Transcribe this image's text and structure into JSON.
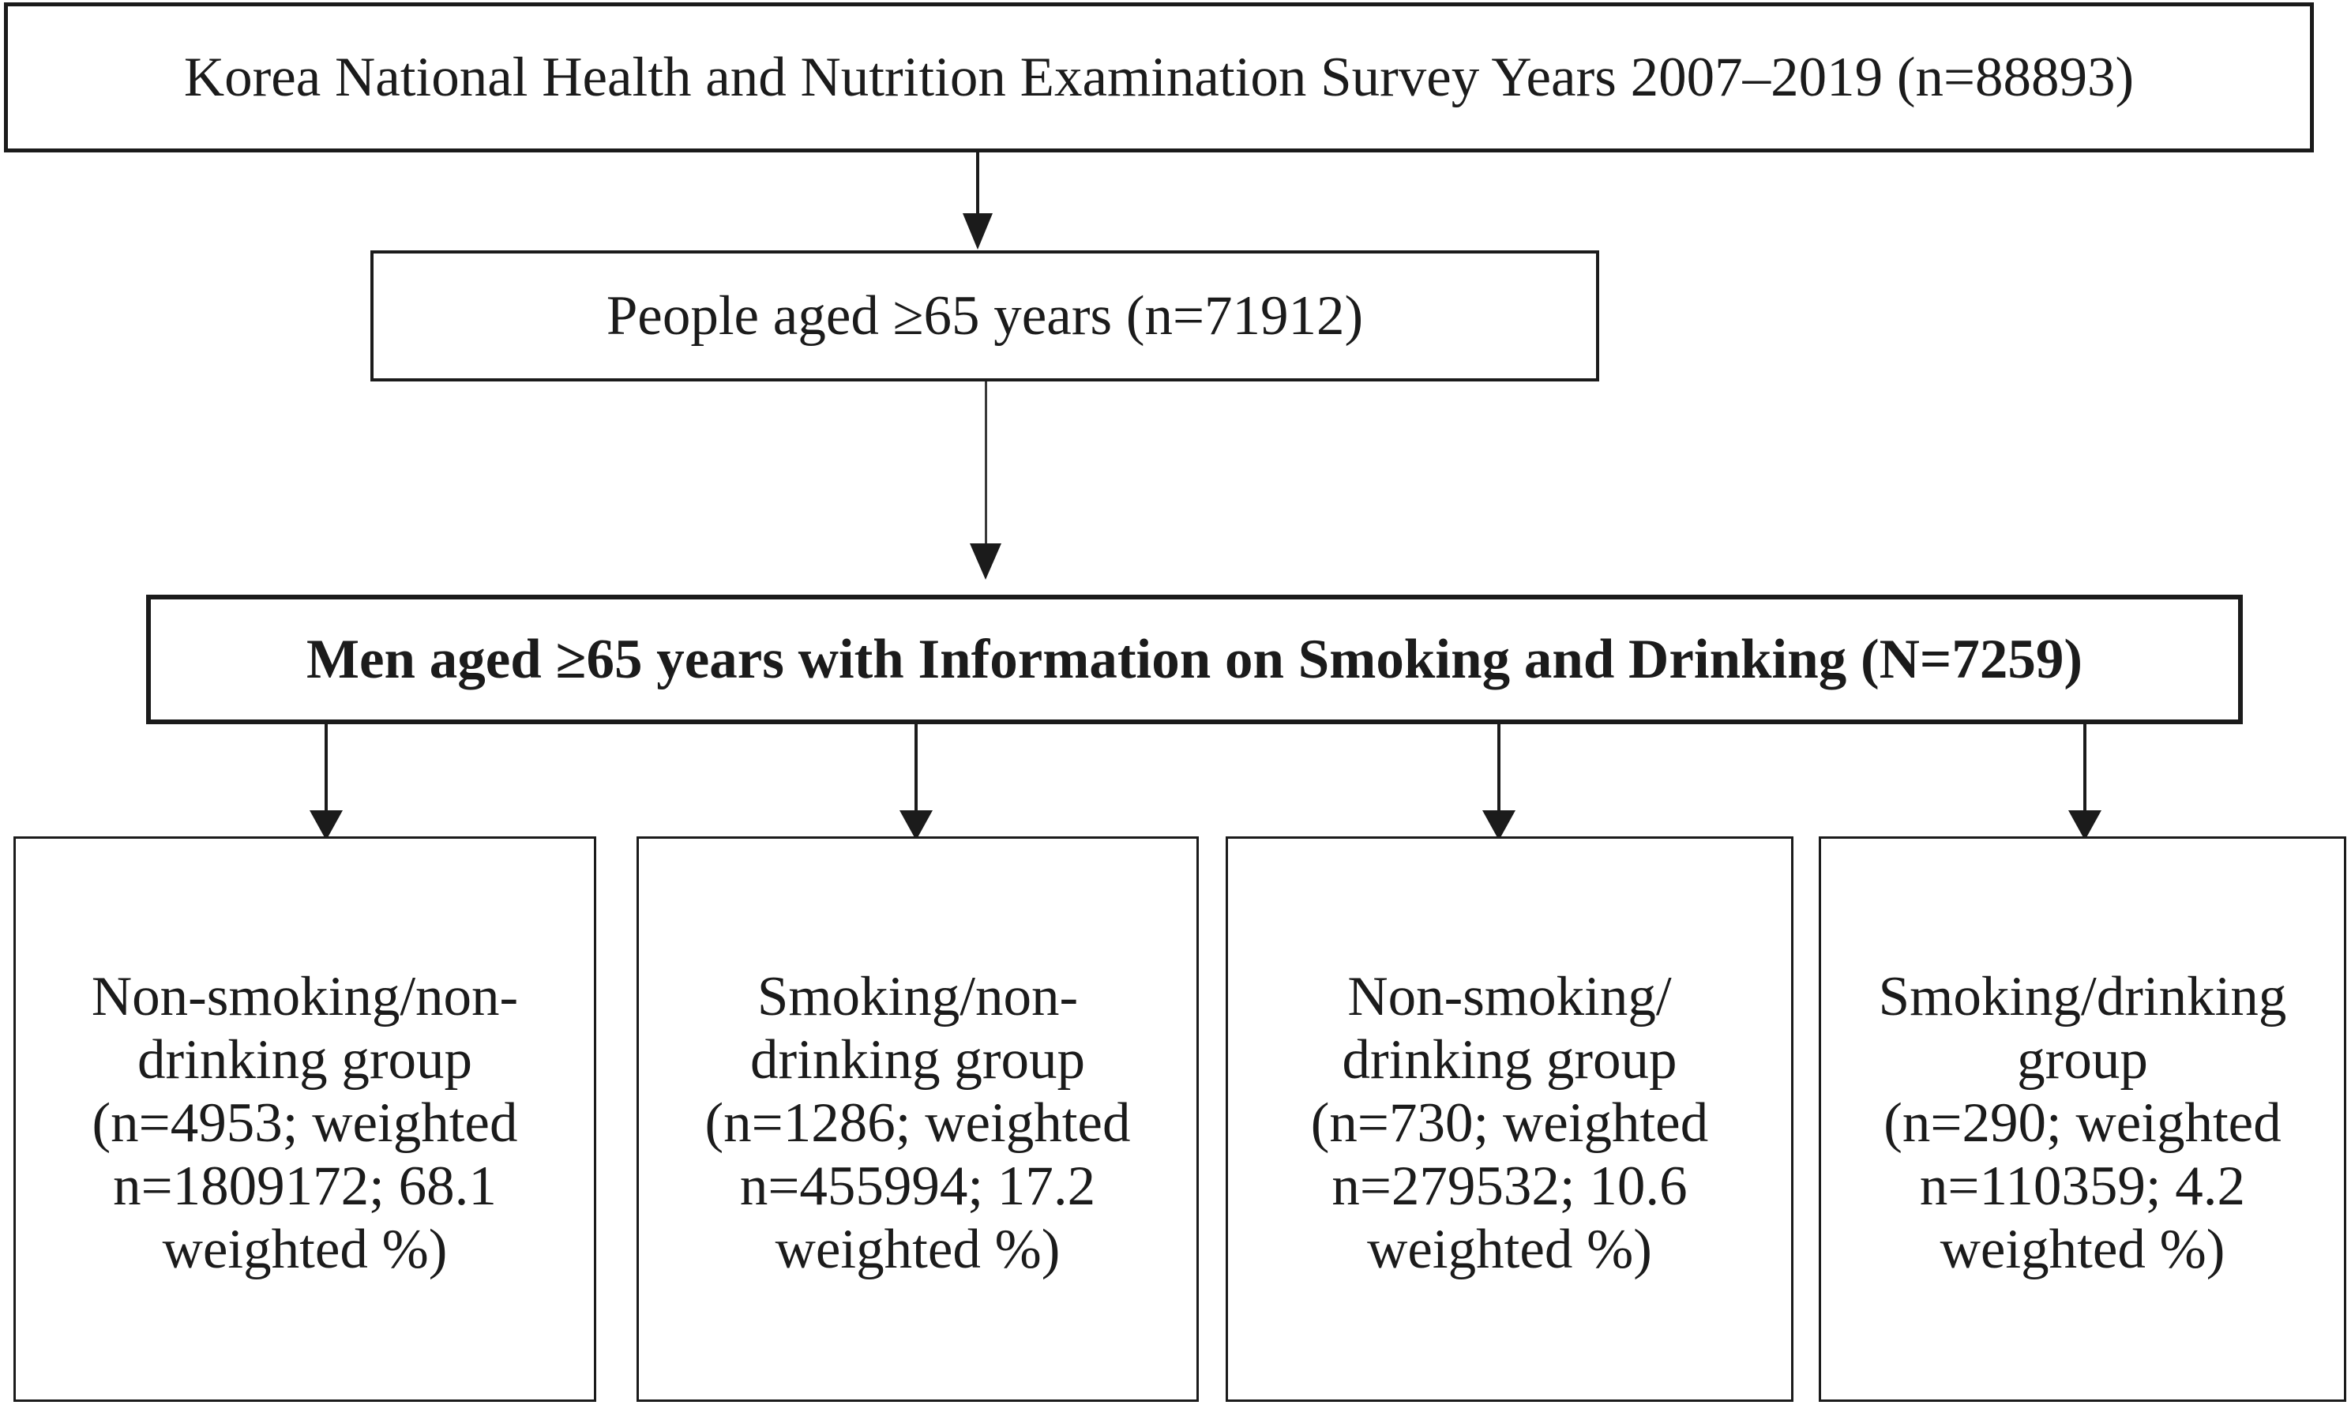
{
  "colors": {
    "ink": "#1b1b1b",
    "background": "#ffffff"
  },
  "flowchart": {
    "survey_box": "Korea National Health and Nutrition Examination Survey Years 2007–2019 (n=88893)",
    "aged_box": "People aged ≥65 years (n=71912)",
    "men_box": "Men aged ≥65 years with Information on Smoking and Drinking (N=7259)",
    "groups": [
      {
        "lines": [
          "Non-smoking/non-",
          "drinking group",
          "(n=4953; weighted",
          "n=1809172; 68.1",
          "weighted %)"
        ]
      },
      {
        "lines": [
          "Smoking/non-",
          "drinking group",
          "(n=1286; weighted",
          "n=455994; 17.2",
          "weighted %)"
        ]
      },
      {
        "lines": [
          "Non-smoking/",
          "drinking group",
          "(n=730; weighted",
          "n=279532; 10.6",
          "weighted %)"
        ]
      },
      {
        "lines": [
          "Smoking/drinking",
          "group",
          "(n=290; weighted",
          "n=110359; 4.2",
          "weighted %)"
        ]
      }
    ]
  }
}
